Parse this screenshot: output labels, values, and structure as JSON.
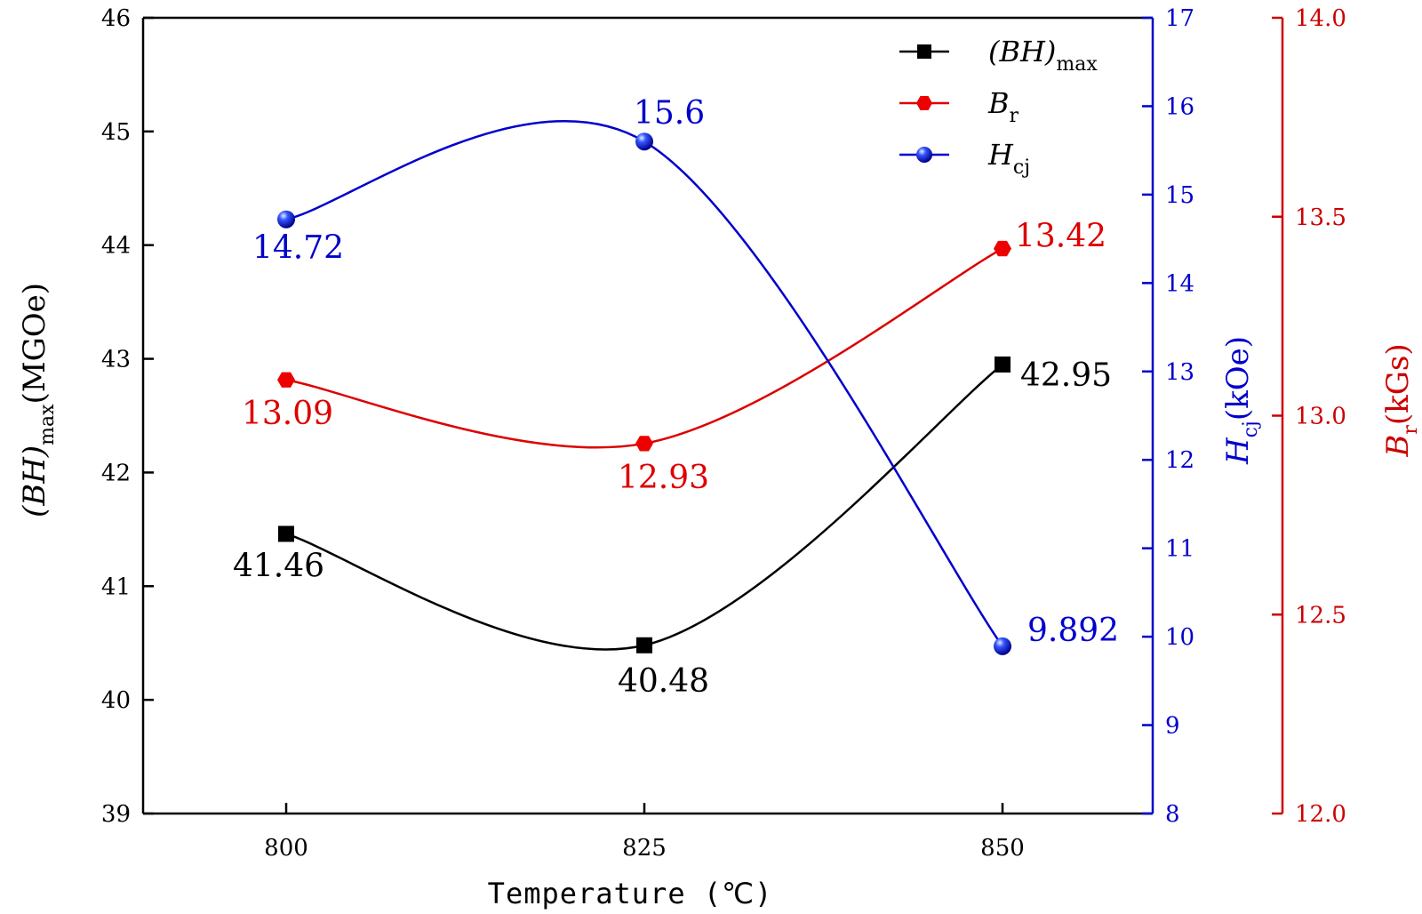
{
  "chart_data": {
    "type": "line",
    "x": [
      800,
      825,
      850
    ],
    "x_tick_labels": [
      "800",
      "825",
      "850"
    ],
    "xlabel": "Temperature (℃)",
    "axes": {
      "left": {
        "label_main": "(BH)",
        "label_sub": "max",
        "label_unit": "(MGOe)",
        "range": [
          39,
          46
        ],
        "ticks": [
          "39",
          "40",
          "41",
          "42",
          "43",
          "44",
          "45",
          "46"
        ],
        "color": "#000000"
      },
      "right_blue": {
        "label_main": "H",
        "label_sub": "cj",
        "label_unit": "(kOe)",
        "range": [
          8,
          17
        ],
        "ticks": [
          "8",
          "9",
          "10",
          "11",
          "12",
          "13",
          "14",
          "15",
          "16",
          "17"
        ],
        "color": "#0000cc"
      },
      "right_red": {
        "label_main": "B",
        "label_sub": "r",
        "label_unit": "(kGs)",
        "range": [
          12.0,
          14.0
        ],
        "ticks": [
          "12.0",
          "12.5",
          "13.0",
          "13.5",
          "14.0"
        ],
        "color": "#cc0000"
      }
    },
    "series": [
      {
        "name_main": "(BH)",
        "name_sub": "max",
        "axis": "left",
        "color": "#000000",
        "marker": "square",
        "values": [
          41.46,
          40.48,
          42.95
        ],
        "data_labels": [
          "41.46",
          "40.48",
          "42.95"
        ]
      },
      {
        "name_main": "B",
        "name_sub": "r",
        "axis": "right_red",
        "color": "#dd0000",
        "marker": "hexagon",
        "values": [
          13.09,
          12.93,
          13.42
        ],
        "data_labels": [
          "13.09",
          "12.93",
          "13.42"
        ]
      },
      {
        "name_main": "H",
        "name_sub": "cj",
        "axis": "right_blue",
        "color": "#0000cc",
        "marker": "sphere",
        "values": [
          14.72,
          15.6,
          9.892
        ],
        "data_labels": [
          "14.72",
          "15.6",
          "9.892"
        ]
      }
    ],
    "legend_position": "top-right",
    "grid": false
  }
}
